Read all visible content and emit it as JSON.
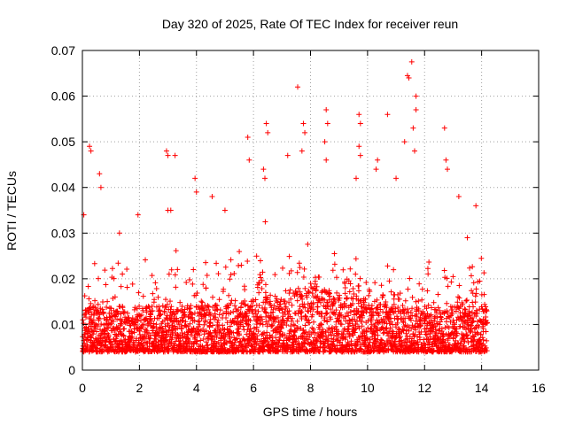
{
  "chart_data": {
    "type": "scatter",
    "title": "Day 320 of 2025, Rate Of TEC Index for receiver reun",
    "xlabel": "GPS time / hours",
    "ylabel": "ROTI / TECUs",
    "xlim": [
      0,
      16
    ],
    "ylim": [
      0,
      0.07
    ],
    "x_ticks": [
      "0",
      "2",
      "4",
      "6",
      "8",
      "10",
      "12",
      "14",
      "16"
    ],
    "y_ticks": [
      "0",
      "0.01",
      "0.02",
      "0.03",
      "0.04",
      "0.05",
      "0.06",
      "0.07"
    ],
    "grid": true,
    "marker": "+",
    "color": "#ff0000",
    "data_extent_hours": [
      0,
      14.2
    ],
    "series": [
      {
        "name": "ROTI",
        "notable_points": [
          {
            "x": 0.25,
            "y": 0.049
          },
          {
            "x": 0.3,
            "y": 0.048
          },
          {
            "x": 0.05,
            "y": 0.034
          },
          {
            "x": 0.6,
            "y": 0.043
          },
          {
            "x": 0.65,
            "y": 0.04
          },
          {
            "x": 1.3,
            "y": 0.03
          },
          {
            "x": 1.95,
            "y": 0.034
          },
          {
            "x": 2.95,
            "y": 0.048
          },
          {
            "x": 3.0,
            "y": 0.047
          },
          {
            "x": 3.25,
            "y": 0.047
          },
          {
            "x": 3.0,
            "y": 0.035
          },
          {
            "x": 3.1,
            "y": 0.035
          },
          {
            "x": 3.95,
            "y": 0.042
          },
          {
            "x": 4.0,
            "y": 0.039
          },
          {
            "x": 4.55,
            "y": 0.038
          },
          {
            "x": 5.0,
            "y": 0.035
          },
          {
            "x": 5.8,
            "y": 0.051
          },
          {
            "x": 5.85,
            "y": 0.046
          },
          {
            "x": 6.45,
            "y": 0.054
          },
          {
            "x": 6.5,
            "y": 0.052
          },
          {
            "x": 6.35,
            "y": 0.044
          },
          {
            "x": 6.4,
            "y": 0.042
          },
          {
            "x": 7.2,
            "y": 0.047
          },
          {
            "x": 7.55,
            "y": 0.062
          },
          {
            "x": 7.75,
            "y": 0.054
          },
          {
            "x": 7.8,
            "y": 0.052
          },
          {
            "x": 7.7,
            "y": 0.048
          },
          {
            "x": 8.55,
            "y": 0.057
          },
          {
            "x": 8.6,
            "y": 0.054
          },
          {
            "x": 8.5,
            "y": 0.05
          },
          {
            "x": 8.55,
            "y": 0.046
          },
          {
            "x": 9.7,
            "y": 0.056
          },
          {
            "x": 9.75,
            "y": 0.054
          },
          {
            "x": 9.7,
            "y": 0.049
          },
          {
            "x": 9.75,
            "y": 0.047
          },
          {
            "x": 9.6,
            "y": 0.042
          },
          {
            "x": 10.7,
            "y": 0.056
          },
          {
            "x": 10.35,
            "y": 0.046
          },
          {
            "x": 10.3,
            "y": 0.044
          },
          {
            "x": 11.0,
            "y": 0.042
          },
          {
            "x": 11.4,
            "y": 0.0645
          },
          {
            "x": 11.45,
            "y": 0.064
          },
          {
            "x": 11.55,
            "y": 0.0675
          },
          {
            "x": 11.7,
            "y": 0.06
          },
          {
            "x": 11.7,
            "y": 0.057
          },
          {
            "x": 11.3,
            "y": 0.05
          },
          {
            "x": 11.6,
            "y": 0.053
          },
          {
            "x": 11.65,
            "y": 0.048
          },
          {
            "x": 12.7,
            "y": 0.053
          },
          {
            "x": 12.75,
            "y": 0.046
          },
          {
            "x": 12.8,
            "y": 0.044
          },
          {
            "x": 13.2,
            "y": 0.038
          },
          {
            "x": 13.8,
            "y": 0.036
          },
          {
            "x": 13.5,
            "y": 0.029
          }
        ]
      }
    ]
  }
}
